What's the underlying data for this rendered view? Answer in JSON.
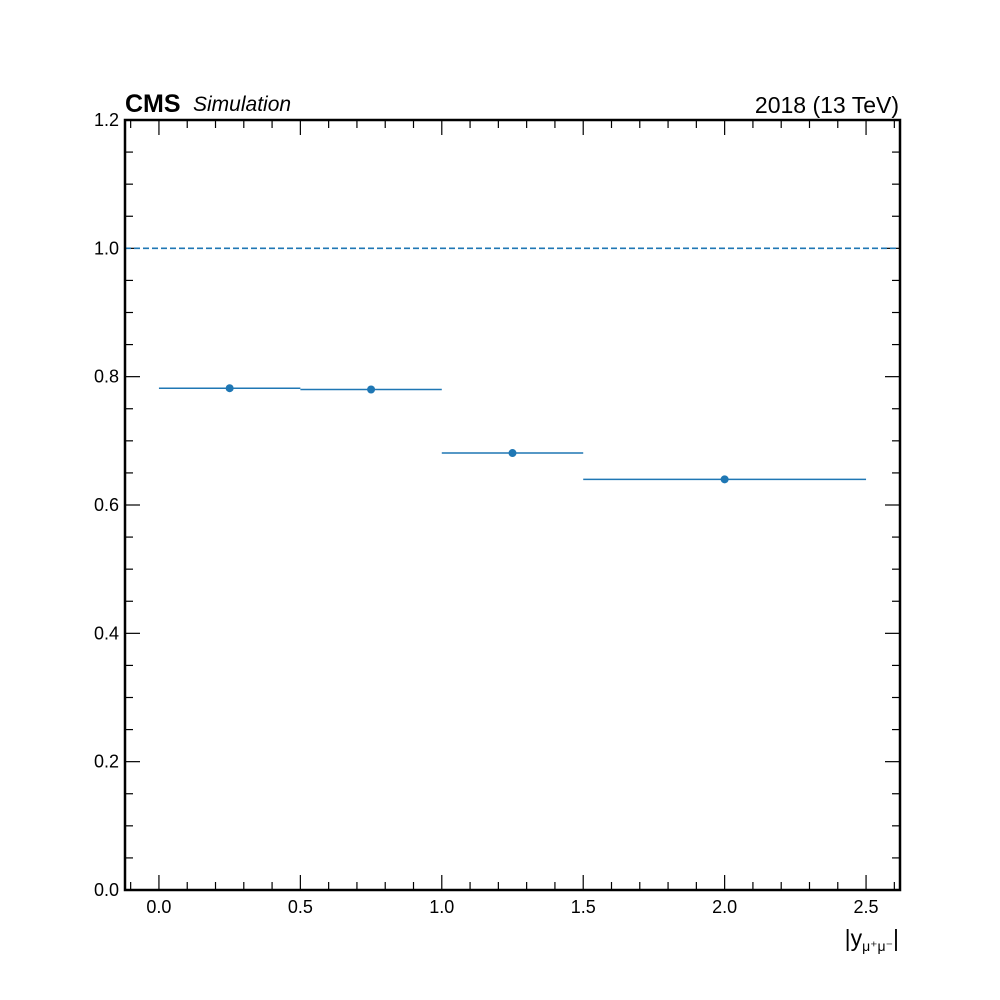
{
  "chart_data": {
    "type": "scatter",
    "experiment_label": "CMS",
    "status_label": "Simulation",
    "lumi_label": "2018 (13 TeV)",
    "xlabel": {
      "main": "|y",
      "sub": "μ⁺μ⁻",
      "close": "|"
    },
    "ylabel": "",
    "xlim": [
      -0.12,
      2.62
    ],
    "ylim": [
      0.0,
      1.2
    ],
    "x_ticks": [
      0.0,
      0.5,
      1.0,
      1.5,
      2.0,
      2.5
    ],
    "x_tick_labels": [
      "0.0",
      "0.5",
      "1.0",
      "1.5",
      "2.0",
      "2.5"
    ],
    "y_ticks": [
      0.0,
      0.2,
      0.4,
      0.6,
      0.8,
      1.0,
      1.2
    ],
    "y_tick_labels": [
      "0.0",
      "0.2",
      "0.4",
      "0.6",
      "0.8",
      "1.0",
      "1.2"
    ],
    "reference_line": {
      "y": 1.0,
      "style": "dashed"
    },
    "grid": false,
    "series": [
      {
        "color": "#1f77b4",
        "points": [
          {
            "x": 0.25,
            "xlow": 0.0,
            "xhigh": 0.5,
            "y": 0.782
          },
          {
            "x": 0.75,
            "xlow": 0.5,
            "xhigh": 1.0,
            "y": 0.78
          },
          {
            "x": 1.25,
            "xlow": 1.0,
            "xhigh": 1.5,
            "y": 0.681
          },
          {
            "x": 2.0,
            "xlow": 1.5,
            "xhigh": 2.5,
            "y": 0.64
          }
        ]
      }
    ]
  }
}
